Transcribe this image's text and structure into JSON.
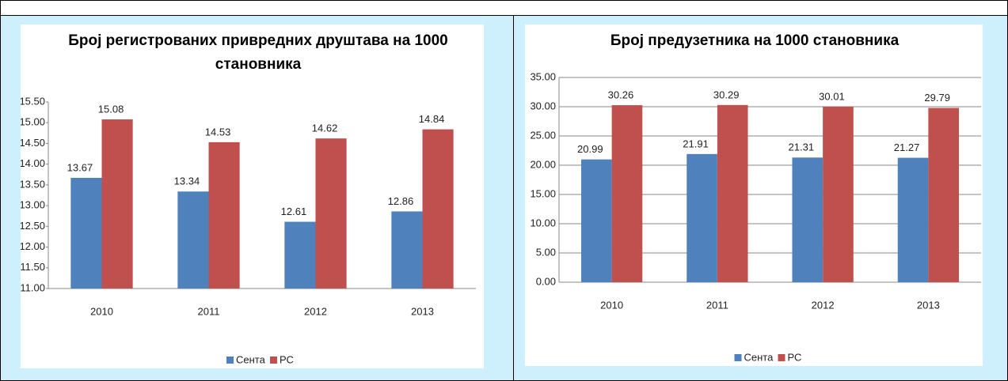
{
  "chart_data": [
    {
      "type": "bar",
      "title": "Број регистрованих привредних друштава на 1000 становника",
      "categories": [
        "2010",
        "2011",
        "2012",
        "2013"
      ],
      "series": [
        {
          "name": "Сента",
          "color": "#4f81bd",
          "values": [
            13.67,
            13.34,
            12.61,
            12.86
          ]
        },
        {
          "name": "РС",
          "color": "#c0504d",
          "values": [
            15.08,
            14.53,
            14.62,
            14.84
          ]
        }
      ],
      "ylim": [
        11,
        15.5
      ],
      "yticks": [
        {
          "value": 11,
          "label": "11.00"
        },
        {
          "value": 11.5,
          "label": "11.50"
        },
        {
          "value": 12,
          "label": "12.00"
        },
        {
          "value": 12.5,
          "label": "12.50"
        },
        {
          "value": 13,
          "label": "13.00"
        },
        {
          "value": 13.5,
          "label": "13.50"
        },
        {
          "value": 14,
          "label": "14.00"
        },
        {
          "value": 14.5,
          "label": "14.50"
        },
        {
          "value": 15,
          "label": "15.00"
        },
        {
          "value": 15.5,
          "label": "15.50"
        }
      ],
      "grid": false,
      "legend": "bottom"
    },
    {
      "type": "bar",
      "title": "Број предузетника на 1000 становника",
      "categories": [
        "2010",
        "2011",
        "2012",
        "2013"
      ],
      "series": [
        {
          "name": "Сента",
          "color": "#4f81bd",
          "values": [
            20.99,
            21.91,
            21.31,
            21.27
          ]
        },
        {
          "name": "РС",
          "color": "#c0504d",
          "values": [
            30.26,
            30.29,
            30.01,
            29.79
          ]
        }
      ],
      "ylim": [
        0,
        35
      ],
      "yticks": [
        {
          "value": 0,
          "label": "0.00"
        },
        {
          "value": 5,
          "label": "5.00"
        },
        {
          "value": 10,
          "label": "10.00"
        },
        {
          "value": 15,
          "label": "15.00"
        },
        {
          "value": 20,
          "label": "20.00"
        },
        {
          "value": 25,
          "label": "25.00"
        },
        {
          "value": 30,
          "label": "30.00"
        },
        {
          "value": 35,
          "label": "35.00"
        }
      ],
      "grid": true,
      "legend": "bottom"
    }
  ]
}
